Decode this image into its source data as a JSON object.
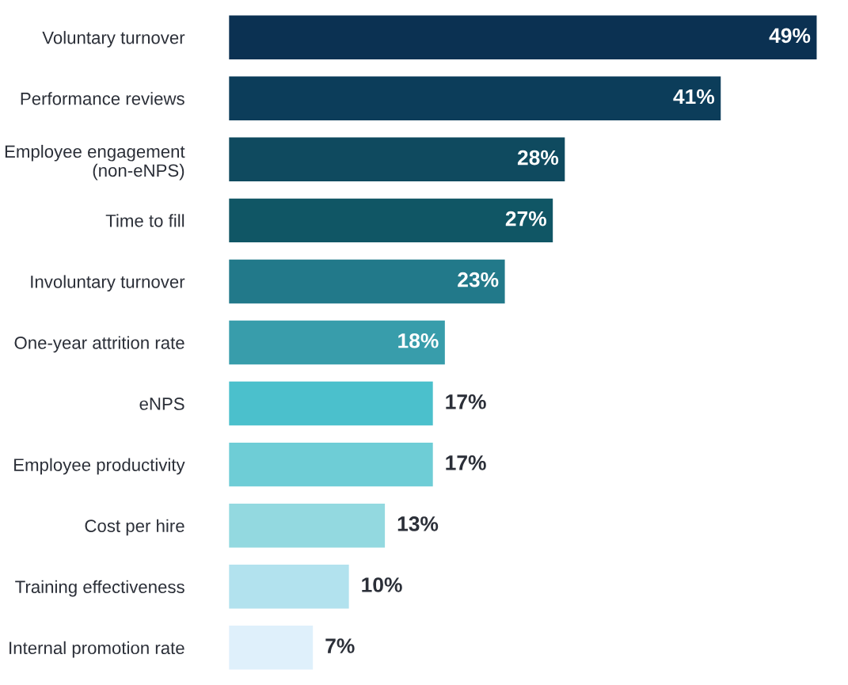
{
  "chart_data": {
    "type": "bar",
    "orientation": "horizontal",
    "categories": [
      "Voluntary turnover",
      "Performance reviews",
      "Employee engagement\n(non-eNPS)",
      "Time to fill",
      "Involuntary turnover",
      "One-year attrition rate",
      "eNPS",
      "Employee productivity",
      "Cost per hire",
      "Training effectiveness",
      "Internal promotion rate"
    ],
    "values": [
      49,
      41,
      28,
      27,
      23,
      18,
      17,
      17,
      13,
      10,
      7
    ],
    "colors": [
      "#0b3152",
      "#0c3d5a",
      "#0f4a5f",
      "#105665",
      "#22798a",
      "#389dab",
      "#4bc0cc",
      "#6ecdd6",
      "#93d9e0",
      "#b2e2ee",
      "#dff0fb"
    ],
    "value_labels": [
      "49%",
      "41%",
      "28%",
      "27%",
      "23%",
      "18%",
      "17%",
      "17%",
      "13%",
      "10%",
      "7%"
    ],
    "tick_labels": "y",
    "grid": false,
    "legend": false
  }
}
